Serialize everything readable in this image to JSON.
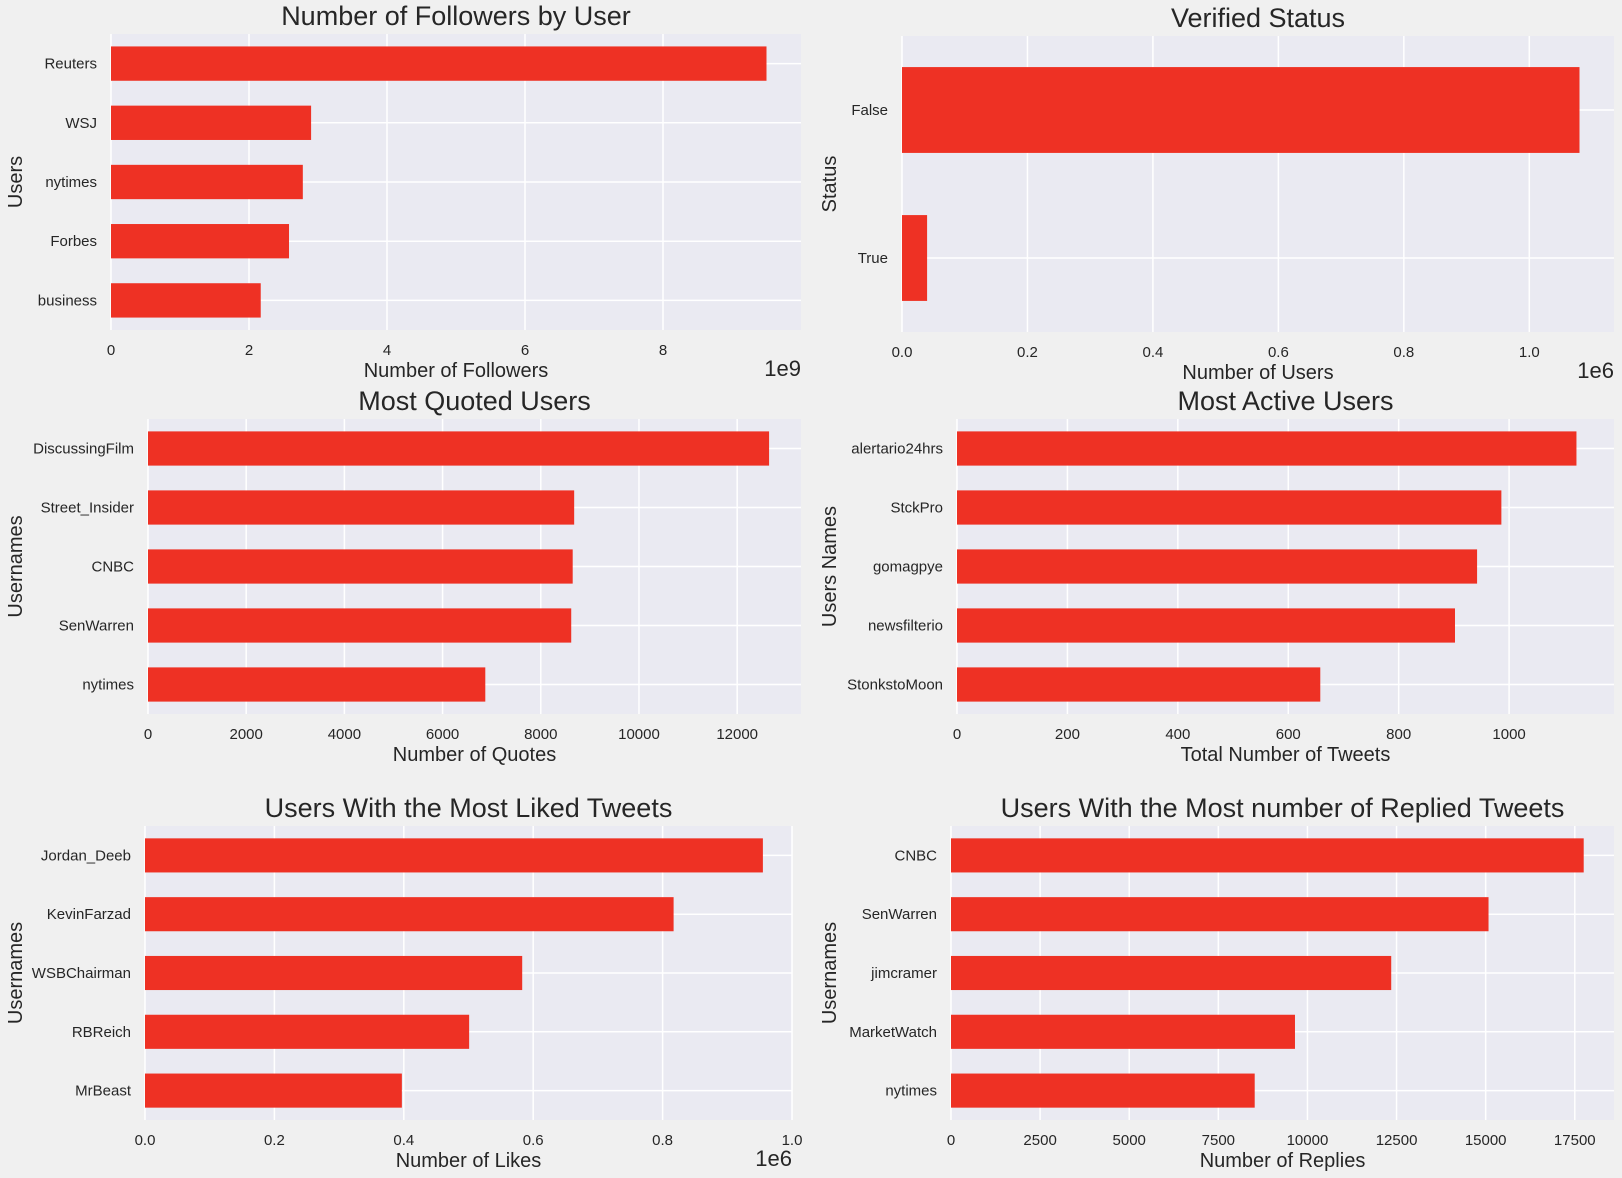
{
  "bar_color": "#ee3124",
  "chart_data": [
    {
      "type": "bar",
      "orientation": "horizontal",
      "title": "Number of Followers by User",
      "xlabel": "Number of Followers",
      "ylabel": "Users",
      "offset_label": "1e9",
      "xlim": [
        0,
        10
      ],
      "xticks": [
        0,
        2,
        4,
        6,
        8
      ],
      "tick_labels": [
        "0",
        "2",
        "4",
        "6",
        "8"
      ],
      "categories": [
        "Reuters",
        "WSJ",
        "nytimes",
        "Forbes",
        "business"
      ],
      "values": [
        9.5,
        2.9,
        2.78,
        2.58,
        2.17
      ]
    },
    {
      "type": "bar",
      "orientation": "horizontal",
      "title": "Verified Status",
      "xlabel": "Number of Users",
      "ylabel": "Status",
      "offset_label": "1e6",
      "xlim": [
        0,
        1.135
      ],
      "xticks": [
        0,
        0.2,
        0.4,
        0.6,
        0.8,
        1.0
      ],
      "tick_labels": [
        "0.0",
        "0.2",
        "0.4",
        "0.6",
        "0.8",
        "1.0"
      ],
      "categories": [
        "False",
        "True"
      ],
      "values": [
        1.08,
        0.04
      ]
    },
    {
      "type": "bar",
      "orientation": "horizontal",
      "title": "Most Quoted Users",
      "xlabel": "Number of Quotes",
      "ylabel": "Usernames",
      "offset_label": "",
      "xlim": [
        0,
        13300
      ],
      "xticks": [
        0,
        2000,
        4000,
        6000,
        8000,
        10000,
        12000
      ],
      "tick_labels": [
        "0",
        "2000",
        "4000",
        "6000",
        "8000",
        "10000",
        "12000"
      ],
      "categories": [
        "DiscussingFilm",
        "Street_Insider",
        "CNBC",
        "SenWarren",
        "nytimes"
      ],
      "values": [
        12650,
        8680,
        8650,
        8620,
        6870
      ]
    },
    {
      "type": "bar",
      "orientation": "horizontal",
      "title": "Most Active Users",
      "xlabel": "Total Number of Tweets",
      "ylabel": "Users Names",
      "offset_label": "",
      "xlim": [
        0,
        1190
      ],
      "xticks": [
        0,
        200,
        400,
        600,
        800,
        1000
      ],
      "tick_labels": [
        "0",
        "200",
        "400",
        "600",
        "800",
        "1000"
      ],
      "categories": [
        "alertario24hrs",
        "StckPro",
        "gomagpye",
        "newsfilterio",
        "StonkstoMoon"
      ],
      "values": [
        1122,
        986,
        942,
        902,
        658
      ]
    },
    {
      "type": "bar",
      "orientation": "horizontal",
      "title": "Users With the Most Liked Tweets",
      "xlabel": "Number of Likes",
      "ylabel": "Usernames",
      "offset_label": "1e6",
      "xlim": [
        0,
        1.0
      ],
      "xticks": [
        0,
        0.2,
        0.4,
        0.6,
        0.8,
        1.0
      ],
      "tick_labels": [
        "0.0",
        "0.2",
        "0.4",
        "0.6",
        "0.8",
        "1.0"
      ],
      "categories": [
        "Jordan_Deeb",
        "KevinFarzad",
        "WSBChairman",
        "RBReich",
        "MrBeast"
      ],
      "values": [
        0.955,
        0.817,
        0.583,
        0.501,
        0.397
      ]
    },
    {
      "type": "bar",
      "orientation": "horizontal",
      "title": "Users With the Most number of Replied Tweets",
      "xlabel": "Number of Replies",
      "ylabel": "Usernames",
      "offset_label": "",
      "xlim": [
        0,
        18600
      ],
      "xticks": [
        0,
        2500,
        5000,
        7500,
        10000,
        12500,
        15000,
        17500
      ],
      "tick_labels": [
        "0",
        "2500",
        "5000",
        "7500",
        "10000",
        "12500",
        "15000",
        "17500"
      ],
      "categories": [
        "CNBC",
        "SenWarren",
        "jimcramer",
        "MarketWatch",
        "nytimes"
      ],
      "values": [
        17750,
        15080,
        12350,
        9650,
        8520
      ]
    }
  ]
}
